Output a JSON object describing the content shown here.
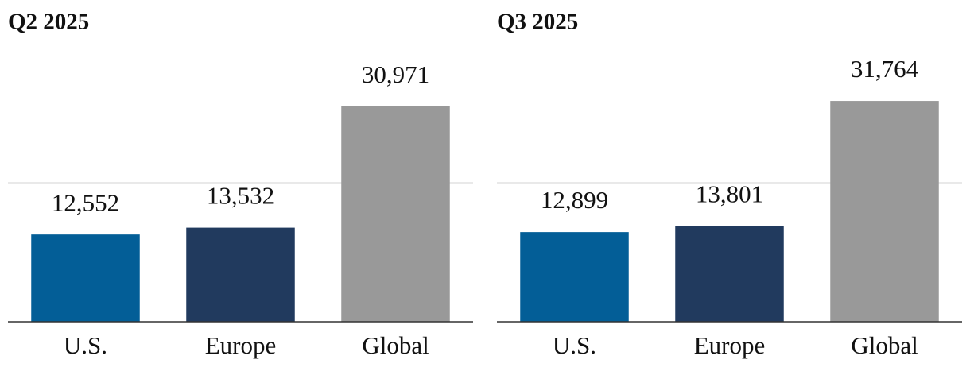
{
  "chart_data": [
    {
      "type": "bar",
      "title": "Q2 2025",
      "categories": [
        "U.S.",
        "Europe",
        "Global"
      ],
      "values": [
        12552,
        13532,
        30971
      ],
      "value_labels": [
        "12,552",
        "13,532",
        "30,971"
      ],
      "colors": [
        "#035e97",
        "#213a5e",
        "#999999"
      ],
      "ylim": [
        0,
        40000
      ],
      "grid_lines": [
        20000
      ]
    },
    {
      "type": "bar",
      "title": "Q3 2025",
      "categories": [
        "U.S.",
        "Europe",
        "Global"
      ],
      "values": [
        12899,
        13801,
        31764
      ],
      "value_labels": [
        "12,899",
        "13,801",
        "31,764"
      ],
      "colors": [
        "#035e97",
        "#213a5e",
        "#999999"
      ],
      "ylim": [
        0,
        40000
      ],
      "grid_lines": [
        20000
      ]
    }
  ]
}
